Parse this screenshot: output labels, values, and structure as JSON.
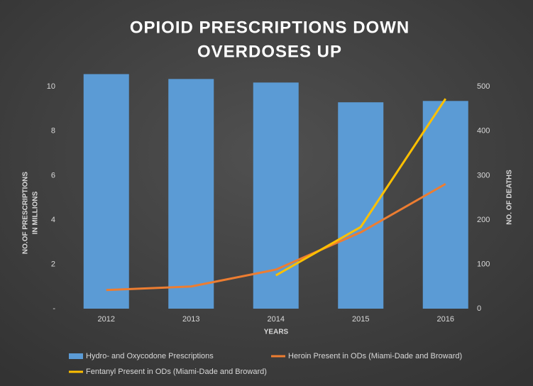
{
  "chart_data": {
    "type": "bar_line",
    "title": [
      "OPIOID PRESCRIPTIONS DOWN",
      "OVERDOSES UP"
    ],
    "x_label": "YEARS",
    "y_label": [
      "NO.OF PRESCRIPTIONS",
      "IN MILLIONS"
    ],
    "y2_label": "NO. OF DEATHS",
    "categories": [
      "2012",
      "2013",
      "2014",
      "2015",
      "2016"
    ],
    "ylim": [
      0,
      11
    ],
    "yticks": [
      {
        "value": 0,
        "label": "-"
      },
      2,
      4,
      6,
      8,
      10
    ],
    "y2lim": [
      0,
      550
    ],
    "y2ticks": [
      0,
      100,
      200,
      300,
      400,
      500
    ],
    "series": [
      {
        "name": "Hydro- and Oxycodone Prescriptions",
        "type": "bar",
        "color": "#5b9bd5",
        "values": [
          10.57,
          10.35,
          10.19,
          9.3,
          9.36
        ]
      },
      {
        "name": "Heroin Present in ODs  (Miami-Dade and Broward)",
        "type": "line",
        "axis": "y2",
        "color": "#ed7d31",
        "values": [
          42,
          50,
          88,
          172,
          281
        ]
      },
      {
        "name": "Fentanyl Present in ODs (Miami-Dade and Broward)",
        "type": "line",
        "axis": "y2",
        "color": "#ffc000",
        "values": [
          null,
          null,
          75,
          184,
          473
        ]
      }
    ],
    "legend": "bottom"
  }
}
